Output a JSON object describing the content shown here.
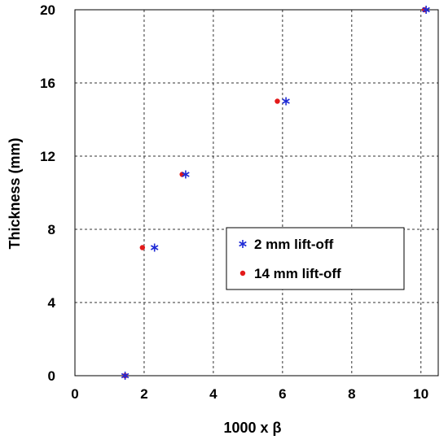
{
  "chart_data": {
    "type": "scatter",
    "xlabel": "1000 x β",
    "ylabel": "Thickness (mm)",
    "xlim": [
      0,
      10.5
    ],
    "ylim": [
      0,
      20
    ],
    "xticks": [
      0,
      2,
      4,
      6,
      8,
      10
    ],
    "yticks": [
      0,
      4,
      8,
      12,
      16,
      20
    ],
    "grid": true,
    "legend_position": "center-right",
    "series": [
      {
        "name": "2 mm lift-off",
        "marker": "asterisk",
        "color": "#1f2bd6",
        "points": [
          {
            "x": 1.45,
            "y": 0
          },
          {
            "x": 2.3,
            "y": 7
          },
          {
            "x": 3.2,
            "y": 11
          },
          {
            "x": 6.1,
            "y": 15
          },
          {
            "x": 10.15,
            "y": 20
          }
        ]
      },
      {
        "name": "14 mm lift-off",
        "marker": "dot",
        "color": "#e31a1a",
        "points": [
          {
            "x": 1.45,
            "y": 0
          },
          {
            "x": 1.95,
            "y": 7
          },
          {
            "x": 3.1,
            "y": 11
          },
          {
            "x": 5.85,
            "y": 15
          },
          {
            "x": 10.1,
            "y": 20
          }
        ]
      }
    ]
  }
}
